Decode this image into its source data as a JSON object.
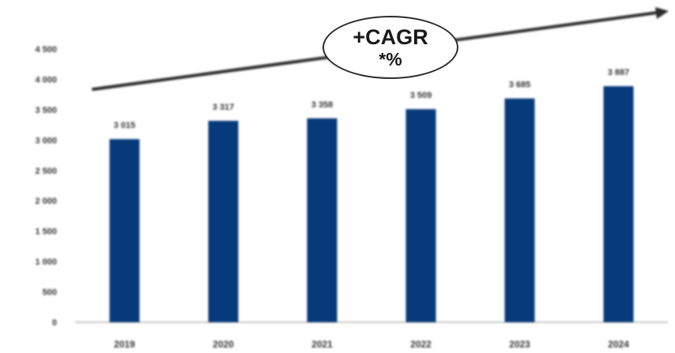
{
  "chart_data": {
    "type": "bar",
    "categories": [
      "2019",
      "2020",
      "2021",
      "2022",
      "2023",
      "2024"
    ],
    "values": [
      3015,
      3317,
      3358,
      3509,
      3685,
      3887
    ],
    "value_labels": [
      "3 015",
      "3 317",
      "3 358",
      "3 509",
      "3 685",
      "3 887"
    ],
    "ylim": [
      0,
      4500
    ],
    "yticks": [
      0,
      500,
      1000,
      1500,
      2000,
      2500,
      3000,
      3500,
      4000,
      4500
    ],
    "ytick_labels": [
      "0",
      "500",
      "1 000",
      "1 500",
      "2 000",
      "2 500",
      "3 000",
      "3 500",
      "4 000",
      "4 500"
    ],
    "grid": false,
    "legend": "none",
    "annotation": {
      "title": "+CAGR",
      "subtitle": "*%",
      "shape": "ellipse",
      "arrow": "trend-arrow-up-right"
    },
    "colors": {
      "bar": "#073a7a",
      "text": "#333333",
      "arrow": "#2b2b2b",
      "axis": "#b5b5b5"
    }
  }
}
